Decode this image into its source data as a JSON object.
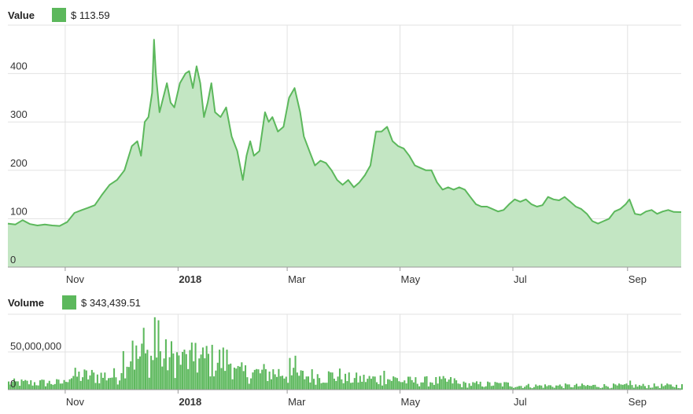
{
  "chart_data": [
    {
      "type": "area",
      "legend_label": "Value",
      "legend_value": "$ 113.59",
      "color": "#5cb85c",
      "fill_color": "#c3e6c3",
      "ylim": [
        0,
        500
      ],
      "y_ticks": [
        {
          "label": "0",
          "value": 0
        },
        {
          "label": "100",
          "value": 100
        },
        {
          "label": "200",
          "value": 200
        },
        {
          "label": "300",
          "value": 300
        },
        {
          "label": "400",
          "value": 400
        }
      ],
      "x_ticks": [
        {
          "label": "Nov",
          "date": "2017-11-01",
          "bold": false
        },
        {
          "label": "2018",
          "date": "2018-01-01",
          "bold": true
        },
        {
          "label": "Mar",
          "date": "2018-03-01",
          "bold": false
        },
        {
          "label": "May",
          "date": "2018-05-01",
          "bold": false
        },
        {
          "label": "Jul",
          "date": "2018-07-01",
          "bold": false
        },
        {
          "label": "Sep",
          "date": "2018-09-01",
          "bold": false
        }
      ],
      "grid": true,
      "x_start": "2017-10-01",
      "x_end": "2018-09-30",
      "series": [
        {
          "points": [
            [
              "2017-10-01",
              90
            ],
            [
              "2017-10-05",
              88
            ],
            [
              "2017-10-09",
              97
            ],
            [
              "2017-10-13",
              89
            ],
            [
              "2017-10-17",
              86
            ],
            [
              "2017-10-21",
              88
            ],
            [
              "2017-10-25",
              86
            ],
            [
              "2017-10-29",
              85
            ],
            [
              "2017-11-02",
              93
            ],
            [
              "2017-11-06",
              112
            ],
            [
              "2017-11-10",
              118
            ],
            [
              "2017-11-13",
              122
            ],
            [
              "2017-11-17",
              128
            ],
            [
              "2017-11-21",
              150
            ],
            [
              "2017-11-25",
              170
            ],
            [
              "2017-11-29",
              180
            ],
            [
              "2017-12-03",
              200
            ],
            [
              "2017-12-07",
              250
            ],
            [
              "2017-12-10",
              260
            ],
            [
              "2017-12-12",
              230
            ],
            [
              "2017-12-14",
              300
            ],
            [
              "2017-12-16",
              310
            ],
            [
              "2017-12-18",
              360
            ],
            [
              "2017-12-19",
              470
            ],
            [
              "2017-12-20",
              400
            ],
            [
              "2017-12-22",
              320
            ],
            [
              "2017-12-24",
              350
            ],
            [
              "2017-12-26",
              380
            ],
            [
              "2017-12-28",
              340
            ],
            [
              "2017-12-30",
              330
            ],
            [
              "2018-01-02",
              380
            ],
            [
              "2018-01-05",
              400
            ],
            [
              "2018-01-07",
              405
            ],
            [
              "2018-01-09",
              370
            ],
            [
              "2018-01-11",
              415
            ],
            [
              "2018-01-13",
              380
            ],
            [
              "2018-01-15",
              310
            ],
            [
              "2018-01-17",
              340
            ],
            [
              "2018-01-19",
              380
            ],
            [
              "2018-01-21",
              320
            ],
            [
              "2018-01-24",
              310
            ],
            [
              "2018-01-27",
              330
            ],
            [
              "2018-01-30",
              270
            ],
            [
              "2018-02-02",
              240
            ],
            [
              "2018-02-05",
              180
            ],
            [
              "2018-02-07",
              230
            ],
            [
              "2018-02-09",
              260
            ],
            [
              "2018-02-11",
              230
            ],
            [
              "2018-02-14",
              240
            ],
            [
              "2018-02-17",
              320
            ],
            [
              "2018-02-19",
              300
            ],
            [
              "2018-02-21",
              310
            ],
            [
              "2018-02-24",
              280
            ],
            [
              "2018-02-27",
              290
            ],
            [
              "2018-03-02",
              350
            ],
            [
              "2018-03-05",
              370
            ],
            [
              "2018-03-08",
              320
            ],
            [
              "2018-03-10",
              270
            ],
            [
              "2018-03-13",
              240
            ],
            [
              "2018-03-16",
              210
            ],
            [
              "2018-03-19",
              220
            ],
            [
              "2018-03-22",
              215
            ],
            [
              "2018-03-25",
              200
            ],
            [
              "2018-03-28",
              180
            ],
            [
              "2018-03-31",
              170
            ],
            [
              "2018-04-03",
              180
            ],
            [
              "2018-04-06",
              165
            ],
            [
              "2018-04-09",
              175
            ],
            [
              "2018-04-12",
              190
            ],
            [
              "2018-04-15",
              210
            ],
            [
              "2018-04-18",
              280
            ],
            [
              "2018-04-21",
              280
            ],
            [
              "2018-04-24",
              290
            ],
            [
              "2018-04-27",
              260
            ],
            [
              "2018-04-30",
              250
            ],
            [
              "2018-05-03",
              245
            ],
            [
              "2018-05-06",
              230
            ],
            [
              "2018-05-09",
              210
            ],
            [
              "2018-05-12",
              205
            ],
            [
              "2018-05-15",
              200
            ],
            [
              "2018-05-18",
              200
            ],
            [
              "2018-05-21",
              175
            ],
            [
              "2018-05-24",
              160
            ],
            [
              "2018-05-27",
              165
            ],
            [
              "2018-05-30",
              160
            ],
            [
              "2018-06-02",
              165
            ],
            [
              "2018-06-05",
              160
            ],
            [
              "2018-06-08",
              145
            ],
            [
              "2018-06-11",
              130
            ],
            [
              "2018-06-14",
              125
            ],
            [
              "2018-06-17",
              125
            ],
            [
              "2018-06-20",
              120
            ],
            [
              "2018-06-23",
              115
            ],
            [
              "2018-06-26",
              118
            ],
            [
              "2018-06-29",
              130
            ],
            [
              "2018-07-02",
              140
            ],
            [
              "2018-07-05",
              135
            ],
            [
              "2018-07-08",
              140
            ],
            [
              "2018-07-11",
              130
            ],
            [
              "2018-07-14",
              125
            ],
            [
              "2018-07-17",
              128
            ],
            [
              "2018-07-20",
              145
            ],
            [
              "2018-07-23",
              140
            ],
            [
              "2018-07-26",
              138
            ],
            [
              "2018-07-29",
              145
            ],
            [
              "2018-08-01",
              135
            ],
            [
              "2018-08-04",
              125
            ],
            [
              "2018-08-07",
              120
            ],
            [
              "2018-08-10",
              110
            ],
            [
              "2018-08-13",
              95
            ],
            [
              "2018-08-16",
              90
            ],
            [
              "2018-08-19",
              95
            ],
            [
              "2018-08-22",
              100
            ],
            [
              "2018-08-25",
              115
            ],
            [
              "2018-08-28",
              120
            ],
            [
              "2018-08-31",
              130
            ],
            [
              "2018-09-02",
              140
            ],
            [
              "2018-09-05",
              110
            ],
            [
              "2018-09-08",
              108
            ],
            [
              "2018-09-11",
              115
            ],
            [
              "2018-09-14",
              118
            ],
            [
              "2018-09-17",
              110
            ],
            [
              "2018-09-20",
              115
            ],
            [
              "2018-09-23",
              118
            ],
            [
              "2018-09-26",
              114
            ],
            [
              "2018-09-30",
              113.59
            ]
          ]
        }
      ]
    },
    {
      "type": "bar",
      "legend_label": "Volume",
      "legend_value": "$ 343,439.51",
      "color": "#5cb85c",
      "ylim": [
        0,
        100000000
      ],
      "y_ticks": [
        {
          "label": "0",
          "value": 0
        },
        {
          "label": "50,000,000",
          "value": 50000000
        }
      ],
      "x_ticks": [
        {
          "label": "Nov",
          "date": "2017-11-01",
          "bold": false
        },
        {
          "label": "2018",
          "date": "2018-01-01",
          "bold": true
        },
        {
          "label": "Mar",
          "date": "2018-03-01",
          "bold": false
        },
        {
          "label": "May",
          "date": "2018-05-01",
          "bold": false
        },
        {
          "label": "Jul",
          "date": "2018-07-01",
          "bold": false
        },
        {
          "label": "Sep",
          "date": "2018-09-01",
          "bold": false
        }
      ],
      "grid": true,
      "x_start": "2017-10-01",
      "x_end": "2018-09-30",
      "monthly_volume_levels": [
        {
          "month": "2017-10",
          "level": 9000000
        },
        {
          "month": "2017-11",
          "level": 18000000
        },
        {
          "month": "2017-12",
          "level": 42000000
        },
        {
          "month": "2018-01",
          "level": 38000000
        },
        {
          "month": "2018-02",
          "level": 22000000
        },
        {
          "month": "2018-03",
          "level": 18000000
        },
        {
          "month": "2018-04",
          "level": 14000000
        },
        {
          "month": "2018-05",
          "level": 11000000
        },
        {
          "month": "2018-06",
          "level": 7000000
        },
        {
          "month": "2018-07",
          "level": 5000000
        },
        {
          "month": "2018-08",
          "level": 5000000
        },
        {
          "month": "2018-09",
          "level": 5000000
        }
      ],
      "peaks": [
        {
          "date": "2017-12-07",
          "value": 65000000
        },
        {
          "date": "2017-12-13",
          "value": 82000000
        },
        {
          "date": "2017-12-19",
          "value": 96000000
        },
        {
          "date": "2017-12-21",
          "value": 92000000
        },
        {
          "date": "2018-01-03",
          "value": 50000000
        },
        {
          "date": "2018-01-10",
          "value": 62000000
        },
        {
          "date": "2018-01-16",
          "value": 58000000
        },
        {
          "date": "2018-03-02",
          "value": 42000000
        },
        {
          "date": "2018-03-05",
          "value": 45000000
        },
        {
          "date": "2018-04-22",
          "value": 25000000
        },
        {
          "date": "2018-09-02",
          "value": 12000000
        }
      ]
    }
  ]
}
